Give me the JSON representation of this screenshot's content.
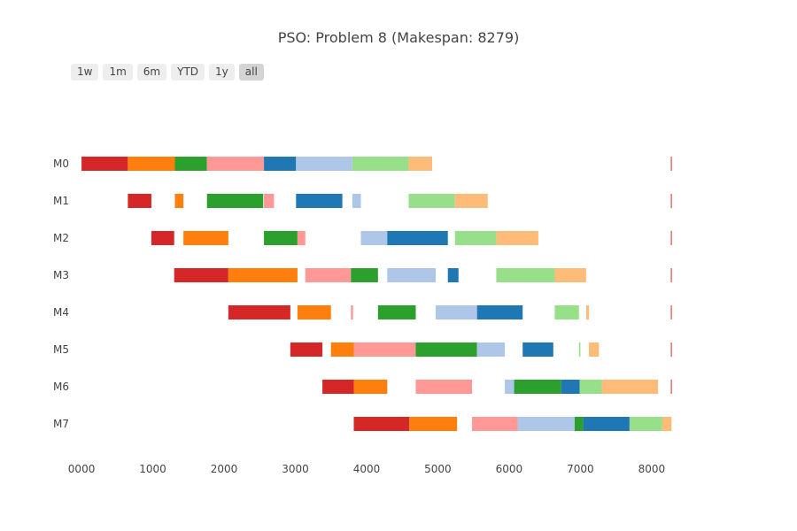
{
  "chart_data": {
    "type": "gantt",
    "title": "PSO: Problem 8 (Makespan: 8279)",
    "range_selector": [
      "1w",
      "1m",
      "6m",
      "YTD",
      "1y",
      "all"
    ],
    "range_selector_active": "all",
    "x_ticks": [
      "0000",
      "1000",
      "2000",
      "3000",
      "4000",
      "5000",
      "6000",
      "7000",
      "8000"
    ],
    "xlim": [
      -150,
      8300
    ],
    "machines": [
      "M0",
      "M1",
      "M2",
      "M3",
      "M4",
      "M5",
      "M6",
      "M7"
    ],
    "colors": {
      "red": "#d62728",
      "orange": "#ff7f0e",
      "green": "#2ca02c",
      "pink": "#ff9896",
      "blue": "#1f77b4",
      "lightblue": "#aec7e8",
      "lightgreen": "#98df8a",
      "lightorange": "#ffbb78"
    },
    "tasks": [
      {
        "machine": "M0",
        "start": 0,
        "end": 650,
        "color": "red"
      },
      {
        "machine": "M0",
        "start": 650,
        "end": 1310,
        "color": "orange"
      },
      {
        "machine": "M0",
        "start": 1310,
        "end": 1760,
        "color": "green"
      },
      {
        "machine": "M0",
        "start": 1760,
        "end": 2560,
        "color": "pink"
      },
      {
        "machine": "M0",
        "start": 2560,
        "end": 3010,
        "color": "blue"
      },
      {
        "machine": "M0",
        "start": 3010,
        "end": 3800,
        "color": "lightblue"
      },
      {
        "machine": "M0",
        "start": 3800,
        "end": 4590,
        "color": "lightgreen"
      },
      {
        "machine": "M0",
        "start": 4590,
        "end": 4920,
        "color": "lightorange"
      },
      {
        "machine": "M0",
        "start": 8270,
        "end": 8279,
        "color": "red"
      },
      {
        "machine": "M1",
        "start": 650,
        "end": 980,
        "color": "red"
      },
      {
        "machine": "M1",
        "start": 1310,
        "end": 1430,
        "color": "orange"
      },
      {
        "machine": "M1",
        "start": 1760,
        "end": 2550,
        "color": "green"
      },
      {
        "machine": "M1",
        "start": 2560,
        "end": 2700,
        "color": "pink"
      },
      {
        "machine": "M1",
        "start": 3010,
        "end": 3660,
        "color": "blue"
      },
      {
        "machine": "M1",
        "start": 3800,
        "end": 3920,
        "color": "lightblue"
      },
      {
        "machine": "M1",
        "start": 4590,
        "end": 5240,
        "color": "lightgreen"
      },
      {
        "machine": "M1",
        "start": 5240,
        "end": 5700,
        "color": "lightorange"
      },
      {
        "machine": "M1",
        "start": 8270,
        "end": 8279,
        "color": "red"
      },
      {
        "machine": "M2",
        "start": 980,
        "end": 1300,
        "color": "red"
      },
      {
        "machine": "M2",
        "start": 1430,
        "end": 2060,
        "color": "orange"
      },
      {
        "machine": "M2",
        "start": 2560,
        "end": 3030,
        "color": "green"
      },
      {
        "machine": "M2",
        "start": 3030,
        "end": 3140,
        "color": "pink"
      },
      {
        "machine": "M2",
        "start": 3920,
        "end": 4290,
        "color": "lightblue"
      },
      {
        "machine": "M2",
        "start": 4290,
        "end": 5140,
        "color": "blue"
      },
      {
        "machine": "M2",
        "start": 5240,
        "end": 5820,
        "color": "lightgreen"
      },
      {
        "machine": "M2",
        "start": 5820,
        "end": 6410,
        "color": "lightorange"
      },
      {
        "machine": "M2",
        "start": 8270,
        "end": 8279,
        "color": "red"
      },
      {
        "machine": "M3",
        "start": 1300,
        "end": 2060,
        "color": "red"
      },
      {
        "machine": "M3",
        "start": 2060,
        "end": 3030,
        "color": "orange"
      },
      {
        "machine": "M3",
        "start": 3140,
        "end": 3780,
        "color": "pink"
      },
      {
        "machine": "M3",
        "start": 3780,
        "end": 4160,
        "color": "green"
      },
      {
        "machine": "M3",
        "start": 4290,
        "end": 4970,
        "color": "lightblue"
      },
      {
        "machine": "M3",
        "start": 5140,
        "end": 5290,
        "color": "blue"
      },
      {
        "machine": "M3",
        "start": 5820,
        "end": 6640,
        "color": "lightgreen"
      },
      {
        "machine": "M3",
        "start": 6640,
        "end": 7080,
        "color": "lightorange"
      },
      {
        "machine": "M3",
        "start": 8270,
        "end": 8279,
        "color": "red"
      },
      {
        "machine": "M4",
        "start": 2060,
        "end": 2930,
        "color": "red"
      },
      {
        "machine": "M4",
        "start": 3030,
        "end": 3500,
        "color": "orange"
      },
      {
        "machine": "M4",
        "start": 3780,
        "end": 3810,
        "color": "pink"
      },
      {
        "machine": "M4",
        "start": 4160,
        "end": 4690,
        "color": "green"
      },
      {
        "machine": "M4",
        "start": 4970,
        "end": 5550,
        "color": "lightblue"
      },
      {
        "machine": "M4",
        "start": 5550,
        "end": 6190,
        "color": "blue"
      },
      {
        "machine": "M4",
        "start": 6640,
        "end": 6980,
        "color": "lightgreen"
      },
      {
        "machine": "M4",
        "start": 7080,
        "end": 7120,
        "color": "lightorange"
      },
      {
        "machine": "M4",
        "start": 8270,
        "end": 8279,
        "color": "red"
      },
      {
        "machine": "M5",
        "start": 2930,
        "end": 3380,
        "color": "red"
      },
      {
        "machine": "M5",
        "start": 3500,
        "end": 3820,
        "color": "orange"
      },
      {
        "machine": "M5",
        "start": 3820,
        "end": 4690,
        "color": "pink"
      },
      {
        "machine": "M5",
        "start": 4690,
        "end": 5550,
        "color": "green"
      },
      {
        "machine": "M5",
        "start": 5550,
        "end": 5940,
        "color": "lightblue"
      },
      {
        "machine": "M5",
        "start": 6190,
        "end": 6620,
        "color": "blue"
      },
      {
        "machine": "M5",
        "start": 6980,
        "end": 7000,
        "color": "lightgreen"
      },
      {
        "machine": "M5",
        "start": 7120,
        "end": 7260,
        "color": "lightorange"
      },
      {
        "machine": "M5",
        "start": 8270,
        "end": 8279,
        "color": "red"
      },
      {
        "machine": "M6",
        "start": 3380,
        "end": 3820,
        "color": "red"
      },
      {
        "machine": "M6",
        "start": 3820,
        "end": 4290,
        "color": "orange"
      },
      {
        "machine": "M6",
        "start": 4690,
        "end": 5480,
        "color": "pink"
      },
      {
        "machine": "M6",
        "start": 5940,
        "end": 6070,
        "color": "lightblue"
      },
      {
        "machine": "M6",
        "start": 6070,
        "end": 6730,
        "color": "green"
      },
      {
        "machine": "M6",
        "start": 6730,
        "end": 6990,
        "color": "blue"
      },
      {
        "machine": "M6",
        "start": 6990,
        "end": 7300,
        "color": "lightgreen"
      },
      {
        "machine": "M6",
        "start": 7300,
        "end": 8090,
        "color": "lightorange"
      },
      {
        "machine": "M6",
        "start": 8270,
        "end": 8279,
        "color": "red"
      },
      {
        "machine": "M7",
        "start": 3820,
        "end": 4600,
        "color": "red"
      },
      {
        "machine": "M7",
        "start": 4600,
        "end": 5270,
        "color": "orange"
      },
      {
        "machine": "M7",
        "start": 5480,
        "end": 6120,
        "color": "pink"
      },
      {
        "machine": "M7",
        "start": 6120,
        "end": 6920,
        "color": "lightblue"
      },
      {
        "machine": "M7",
        "start": 6920,
        "end": 7040,
        "color": "green"
      },
      {
        "machine": "M7",
        "start": 7040,
        "end": 7690,
        "color": "blue"
      },
      {
        "machine": "M7",
        "start": 7690,
        "end": 8150,
        "color": "lightgreen"
      },
      {
        "machine": "M7",
        "start": 8150,
        "end": 8279,
        "color": "lightorange"
      }
    ]
  }
}
